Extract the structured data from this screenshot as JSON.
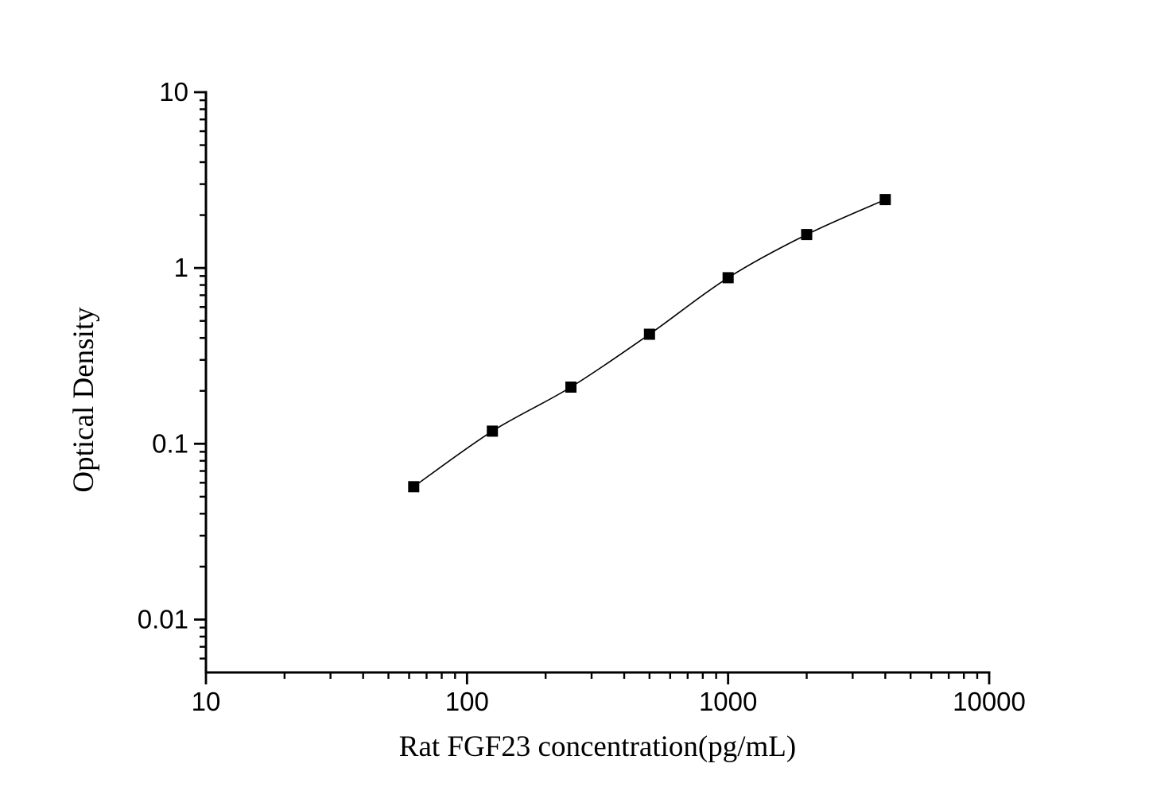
{
  "chart_data": {
    "type": "scatter",
    "title": "",
    "xlabel": "Rat FGF23 concentration(pg/mL)",
    "ylabel": "Optical Density",
    "x_scale": "log",
    "y_scale": "log",
    "xlim": [
      10,
      10000
    ],
    "ylim": [
      0.005,
      10
    ],
    "x_ticks": [
      10,
      100,
      1000,
      10000
    ],
    "x_tick_labels": [
      "10",
      "100",
      "1000",
      "10000"
    ],
    "y_ticks": [
      10,
      1,
      0.1,
      0.01
    ],
    "y_tick_labels": [
      "10",
      "1",
      "0.1",
      "0.01"
    ],
    "grid": false,
    "legend_position": "none",
    "colors": {
      "foreground": "#000000",
      "background": "#ffffff"
    },
    "series": [
      {
        "name": "standard-curve",
        "marker": "filled-square",
        "marker_size_px": 14,
        "line_style": "smooth-thin",
        "color": "#000000",
        "x": [
          62.5,
          125,
          250,
          500,
          1000,
          2000,
          4000
        ],
        "y": [
          0.057,
          0.118,
          0.21,
          0.42,
          0.88,
          1.55,
          2.45
        ]
      }
    ]
  }
}
